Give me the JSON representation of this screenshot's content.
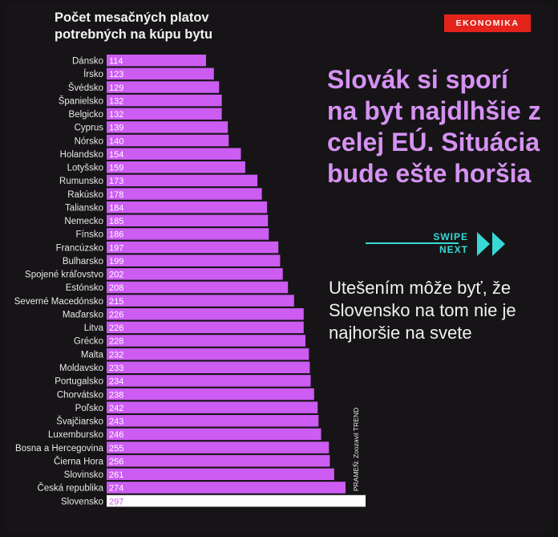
{
  "chart_data": {
    "type": "bar",
    "orientation": "horizontal",
    "title": "Počet mesačných platov potrebných na kúpu bytu",
    "categories": [
      "Dánsko",
      "Írsko",
      "Švédsko",
      "Španielsko",
      "Belgicko",
      "Cyprus",
      "Nórsko",
      "Holandsko",
      "Lotyšsko",
      "Rumunsko",
      "Rakúsko",
      "Taliansko",
      "Nemecko",
      "Fínsko",
      "Francúzsko",
      "Bulharsko",
      "Spojené kráľovstvo",
      "Estónsko",
      "Severné Macedónsko",
      "Maďarsko",
      "Litva",
      "Grécko",
      "Malta",
      "Moldavsko",
      "Portugalsko",
      "Chorvátsko",
      "Poľsko",
      "Švajčiarsko",
      "Luxembursko",
      "Bosna a Hercegovina",
      "Čierna Hora",
      "Slovinsko",
      "Česká republika",
      "Slovensko"
    ],
    "series": [
      {
        "values": [
          114,
          123,
          129,
          132,
          132,
          139,
          140,
          154,
          159,
          173,
          178,
          184,
          185,
          186,
          197,
          199,
          202,
          208,
          215,
          226,
          226,
          228,
          232,
          233,
          234,
          238,
          242,
          243,
          246,
          255,
          256,
          261,
          274,
          297
        ]
      }
    ],
    "highlight": "Slovensko",
    "colors": {
      "bar": "#cc5cf2",
      "highlight": "#ffffff",
      "label": "#e9e9e9"
    },
    "legend": "none",
    "grid": false
  },
  "brand": {
    "label": "EKONOMIKA",
    "color": "#e4231b"
  },
  "headline": "Slovák si sporí na byt najdlhšie z celej EÚ. Situácia bude ešte horšia",
  "swipe": {
    "line1": "SWIPE",
    "line2": "NEXT",
    "icon": "double-chevron-right-icon"
  },
  "subheadline": "Utešením môže byť, že Slovensko na tom nie je najhoršie na svete",
  "source": "PRAMEŇ: Zoozavil TREND"
}
